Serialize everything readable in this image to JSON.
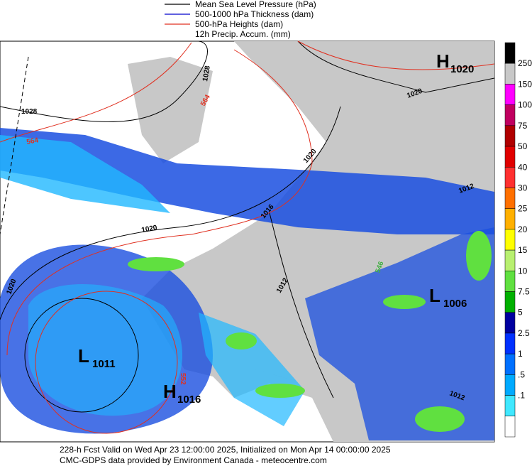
{
  "legend": {
    "items": [
      {
        "label": "Mean Sea Level Pressure (hPa)",
        "color": "#000000"
      },
      {
        "label": "500-1000 hPa Thickness (dam)",
        "color": "#0000cc"
      },
      {
        "label": "500-hPa Heights (dam)",
        "color": "#e03020"
      },
      {
        "label": "12h Precip. Accum. (mm)"
      }
    ]
  },
  "colorbar": {
    "colors": [
      "#000000",
      "#c8c8c8",
      "#ff00ff",
      "#c00060",
      "#b00000",
      "#e00000",
      "#ff3030",
      "#ff7000",
      "#ffb000",
      "#ffff00",
      "#b8f070",
      "#60e040",
      "#00b000",
      "#0000a0",
      "#0030ff",
      "#0070ff",
      "#00aaff",
      "#40e8ff",
      "#ffffff"
    ],
    "labels": [
      "250",
      "150",
      "100",
      "75",
      "50",
      "40",
      "30",
      "25",
      "20",
      "15",
      "10",
      "7.5",
      "5",
      "2.5",
      "1",
      ".5",
      ".1"
    ]
  },
  "centers": [
    {
      "letter": "H",
      "value": "1020"
    },
    {
      "letter": "L",
      "value": "1006"
    },
    {
      "letter": "L",
      "value": "1011"
    },
    {
      "letter": "H",
      "value": "1016"
    }
  ],
  "contour_labels": [
    {
      "text": "1028",
      "color": "#000000"
    },
    {
      "text": "1028",
      "color": "#000000"
    },
    {
      "text": "564",
      "color": "#e03020"
    },
    {
      "text": "564",
      "color": "#e03020"
    },
    {
      "text": "1020",
      "color": "#000000"
    },
    {
      "text": "1020",
      "color": "#000000"
    },
    {
      "text": "1012",
      "color": "#000000"
    },
    {
      "text": "1020",
      "color": "#000000"
    },
    {
      "text": "1020",
      "color": "#000000"
    },
    {
      "text": "1012",
      "color": "#000000"
    },
    {
      "text": "546",
      "color": "#40b040"
    },
    {
      "text": "552",
      "color": "#e03020"
    },
    {
      "text": "1012",
      "color": "#000000"
    },
    {
      "text": "1016",
      "color": "#000000"
    }
  ],
  "footer": {
    "lines": [
      "228-h Fcst Valid on Wed Apr 23 12:00:00 2025, Initialized on Mon Apr 14 00:00:00 2025",
      "CMC-GDPS data provided by Environment Canada - meteocentre.com"
    ]
  }
}
